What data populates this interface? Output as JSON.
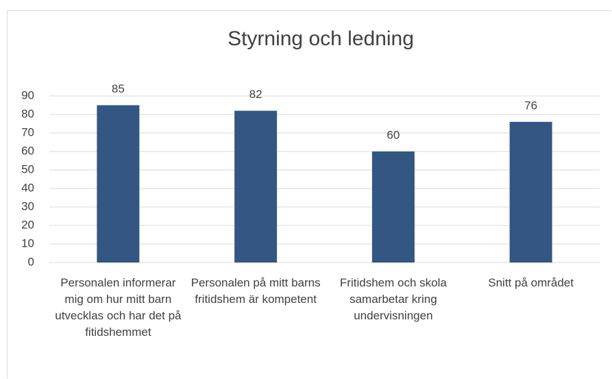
{
  "chart_data": {
    "type": "bar",
    "title": "Styrning och ledning",
    "categories": [
      "Personalen informerar mig om hur mitt barn utvecklas och har det på fitidshemmet",
      "Personalen på mitt barns fritidshem är kompetent",
      "Fritidshem och skola samarbetar kring undervisningen",
      "Snitt på området"
    ],
    "values": [
      85,
      82,
      60,
      76
    ],
    "color": "#335683",
    "ylim": [
      0,
      90
    ],
    "yticks": [
      0,
      10,
      20,
      30,
      40,
      50,
      60,
      70,
      80,
      90
    ],
    "grid": true
  }
}
